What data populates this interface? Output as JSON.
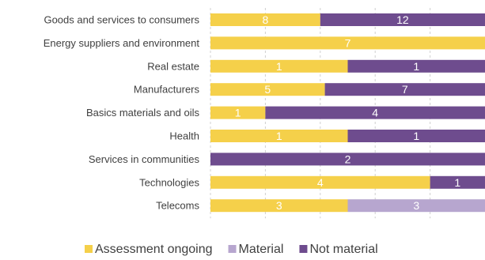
{
  "chart_data": {
    "type": "bar",
    "orientation": "horizontal",
    "stacked": "percent",
    "categories": [
      "Goods and services to consumers",
      "Energy suppliers and environment",
      "Real estate",
      "Manufacturers",
      "Basics materials and oils",
      "Health",
      "Services in communities",
      "Technologies",
      "Telecoms"
    ],
    "series": [
      {
        "name": "Assessment ongoing",
        "color": "#F5D04A",
        "values": [
          8,
          7,
          1,
          5,
          1,
          1,
          0,
          4,
          3
        ]
      },
      {
        "name": "Material",
        "color": "#B7A6CF",
        "values": [
          0,
          0,
          0,
          0,
          0,
          0,
          0,
          0,
          3
        ]
      },
      {
        "name": "Not material",
        "color": "#6E4C8E",
        "values": [
          12,
          0,
          1,
          7,
          4,
          1,
          2,
          1,
          0
        ]
      }
    ],
    "grid": "vertical dashed",
    "legend_position": "bottom"
  }
}
